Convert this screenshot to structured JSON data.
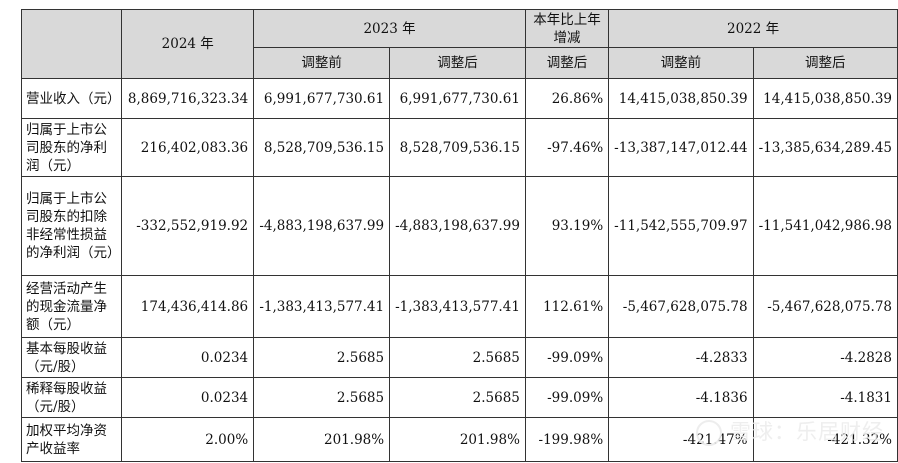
{
  "header": {
    "y2024": "2024 年",
    "y2023": "2023 年",
    "yoy": "本年比上年增减",
    "y2022": "2022 年",
    "before": "调整前",
    "after": "调整后",
    "yoy_sub": "调整后"
  },
  "rows": [
    {
      "label": "营业收入（元）",
      "v2024": "8,869,716,323.34",
      "v2023_before": "6,991,677,730.61",
      "v2023_after": "6,991,677,730.61",
      "yoy": "26.86%",
      "v2022_before": "14,415,038,850.39",
      "v2022_after": "14,415,038,850.39"
    },
    {
      "label": "归属于上市公司股东的净利润（元）",
      "v2024": "216,402,083.36",
      "v2023_before": "8,528,709,536.15",
      "v2023_after": "8,528,709,536.15",
      "yoy": "-97.46%",
      "v2022_before": "-13,387,147,012.44",
      "v2022_after": "-13,385,634,289.45"
    },
    {
      "label": "归属于上市公司股东的扣除非经常性损益的净利润（元）",
      "v2024": "-332,552,919.92",
      "v2023_before": "-4,883,198,637.99",
      "v2023_after": "-4,883,198,637.99",
      "yoy": "93.19%",
      "v2022_before": "-11,542,555,709.97",
      "v2022_after": "-11,541,042,986.98"
    },
    {
      "label": "经营活动产生的现金流量净额（元）",
      "v2024": "174,436,414.86",
      "v2023_before": "-1,383,413,577.41",
      "v2023_after": "-1,383,413,577.41",
      "yoy": "112.61%",
      "v2022_before": "-5,467,628,075.78",
      "v2022_after": "-5,467,628,075.78"
    },
    {
      "label": "基本每股收益（元/股）",
      "v2024": "0.0234",
      "v2023_before": "2.5685",
      "v2023_after": "2.5685",
      "yoy": "-99.09%",
      "v2022_before": "-4.2833",
      "v2022_after": "-4.2828"
    },
    {
      "label": "稀释每股收益（元/股）",
      "v2024": "0.0234",
      "v2023_before": "2.5685",
      "v2023_after": "2.5685",
      "yoy": "-99.09%",
      "v2022_before": "-4.1836",
      "v2022_after": "-4.1831"
    },
    {
      "label": "加权平均净资产收益率",
      "v2024": "2.00%",
      "v2023_before": "201.98%",
      "v2023_after": "201.98%",
      "yoy": "-199.98%",
      "v2022_before": "-421.47%",
      "v2022_after": "-421.32%"
    }
  ],
  "watermark": "雪球：乐居财经"
}
